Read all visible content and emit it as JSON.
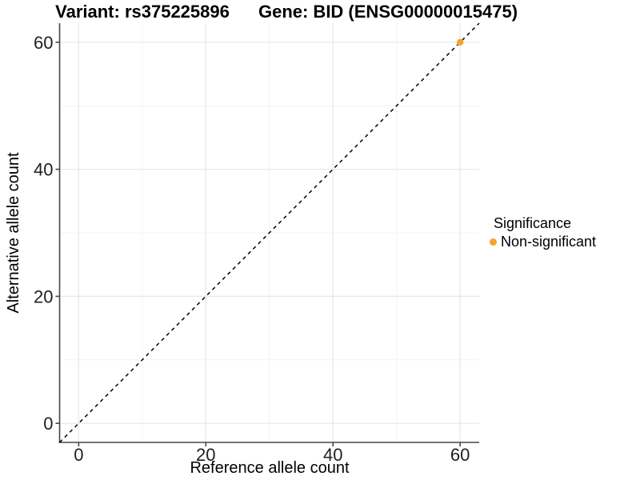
{
  "header": {
    "variant_title": "Variant: rs375225896",
    "gene_title": "Gene: BID (ENSG00000015475)"
  },
  "chart_data": {
    "type": "scatter",
    "title_left": "Variant: rs375225896",
    "title_right": "Gene: BID (ENSG00000015475)",
    "xlabel": "Reference allele count",
    "ylabel": "Alternative allele count",
    "xlim": [
      -3,
      63
    ],
    "ylim": [
      -3,
      63
    ],
    "x_major_ticks": [
      0,
      20,
      40,
      60
    ],
    "y_major_ticks": [
      0,
      20,
      40,
      60
    ],
    "x_tick_labels": [
      "0",
      "20",
      "40",
      "60"
    ],
    "y_tick_labels": [
      "0",
      "20",
      "40",
      "60"
    ],
    "x_minor_ticks": [
      10,
      30,
      50
    ],
    "y_minor_ticks": [
      10,
      30,
      50
    ],
    "grid": "major+minor",
    "points": [
      {
        "x": 60,
        "y": 60,
        "series": "Non-significant"
      }
    ],
    "identity_line": {
      "style": "dashed",
      "from": [
        -3,
        -3
      ],
      "to": [
        63,
        63
      ]
    },
    "legend": {
      "title": "Significance",
      "position": "right",
      "entries": [
        {
          "label": "Non-significant",
          "marker": "circle",
          "color": "#F9A22C"
        }
      ]
    },
    "colors": {
      "point": "#F9A22C",
      "identity_line": "#000000",
      "grid_major": "#E7E7E7",
      "grid_minor": "#F3F3F3",
      "axis_line": "#474747",
      "tick_mark": "#474747",
      "tick_text": "#1F1F1F",
      "background": "#FFFFFF"
    }
  }
}
